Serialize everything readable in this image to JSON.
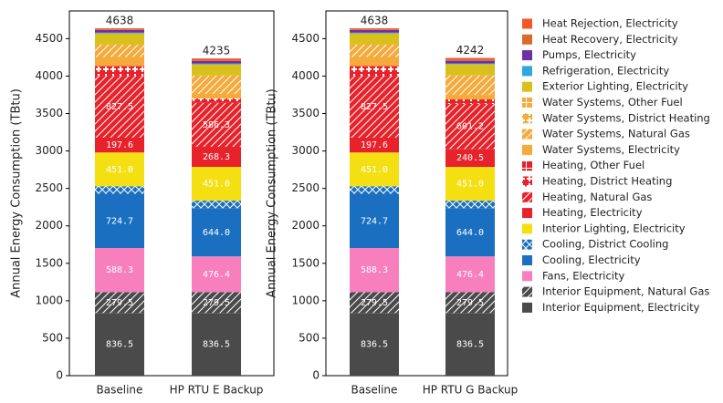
{
  "chart_data": [
    {
      "type": "bar",
      "stacked": true,
      "legend": "right",
      "ylabel": "Annual Energy Consumption (TBtu)",
      "categories": [
        "Baseline",
        "HP RTU E Backup"
      ],
      "totals": [
        4638,
        4235
      ],
      "ylim": [
        0,
        4869.9
      ],
      "yticks": [
        0,
        500,
        1000,
        1500,
        2000,
        2500,
        3000,
        3500,
        4000,
        4500
      ],
      "series": [
        {
          "name": "Interior Equipment, Electricity",
          "color": "#4a4a4a",
          "hatch": "none",
          "values": [
            836.5,
            836.5
          ],
          "value_labels": [
            "836.5",
            "836.5"
          ]
        },
        {
          "name": "Interior Equipment, Natural Gas",
          "color": "#4a4a4a",
          "hatch": "diag",
          "values": [
            279.5,
            279.5
          ],
          "value_labels": [
            "279.5",
            "279.5"
          ]
        },
        {
          "name": "Fans, Electricity",
          "color": "#f77fbe",
          "hatch": "none",
          "values": [
            588.3,
            476.4
          ],
          "value_labels": [
            "588.3",
            "476.4"
          ]
        },
        {
          "name": "Cooling, Electricity",
          "color": "#1a6fc0",
          "hatch": "none",
          "values": [
            724.7,
            644.0
          ],
          "value_labels": [
            "724.7",
            "644.0"
          ]
        },
        {
          "name": "Cooling, District Cooling",
          "color": "#1a6fc0",
          "hatch": "cross",
          "values": [
            100,
            100
          ]
        },
        {
          "name": "Interior Lighting, Electricity",
          "color": "#f4e012",
          "hatch": "none",
          "values": [
            451.0,
            451.0
          ],
          "value_labels": [
            "451.0",
            "451.0"
          ]
        },
        {
          "name": "Heating, Electricity",
          "color": "#e8222a",
          "hatch": "none",
          "values": [
            197.6,
            268.3
          ],
          "value_labels": [
            "197.6",
            "268.3"
          ]
        },
        {
          "name": "Heating, Natural Gas",
          "color": "#e8222a",
          "hatch": "diag",
          "values": [
            827.5,
            586.3
          ],
          "value_labels": [
            "827.5",
            "586.3"
          ]
        },
        {
          "name": "Heating, District Heating",
          "color": "#e8222a",
          "hatch": "plus",
          "values": [
            130,
            60
          ]
        },
        {
          "name": "Heating, Other Fuel",
          "color": "#e8222a",
          "hatch": "grid",
          "values": [
            0,
            0
          ]
        },
        {
          "name": "Water Systems, Electricity",
          "color": "#f5aa3c",
          "hatch": "none",
          "values": [
            120,
            60
          ]
        },
        {
          "name": "Water Systems, Natural Gas",
          "color": "#f5aa3c",
          "hatch": "diag",
          "values": [
            165,
            245
          ]
        },
        {
          "name": "Water Systems, District Heating",
          "color": "#f5aa3c",
          "hatch": "plus",
          "values": [
            0,
            0
          ]
        },
        {
          "name": "Water Systems, Other Fuel",
          "color": "#f5aa3c",
          "hatch": "grid",
          "values": [
            0,
            0
          ]
        },
        {
          "name": "Exterior Lighting, Electricity",
          "color": "#d9c11b",
          "hatch": "none",
          "values": [
            150,
            150
          ]
        },
        {
          "name": "Refrigeration, Electricity",
          "color": "#2ea9df",
          "hatch": "none",
          "values": [
            10,
            10
          ]
        },
        {
          "name": "Pumps, Electricity",
          "color": "#6d2fa5",
          "hatch": "none",
          "values": [
            35,
            35
          ]
        },
        {
          "name": "Heat Recovery, Electricity",
          "color": "#d96a2b",
          "hatch": "none",
          "values": [
            10,
            10
          ]
        },
        {
          "name": "Heat Rejection, Electricity",
          "color": "#f2572a",
          "hatch": "none",
          "values": [
            12.9,
            23.1
          ]
        }
      ]
    },
    {
      "type": "bar",
      "stacked": true,
      "ylabel": "Annual Energy Consumption (TBtu)",
      "categories": [
        "Baseline",
        "HP RTU G Backup"
      ],
      "totals": [
        4638,
        4242
      ],
      "ylim": [
        0,
        4869.9
      ],
      "yticks": [
        0,
        500,
        1000,
        1500,
        2000,
        2500,
        3000,
        3500,
        4000,
        4500
      ],
      "series": [
        {
          "color": "#4a4a4a",
          "hatch": "none",
          "values": [
            836.5,
            836.5
          ],
          "value_labels": [
            "836.5",
            "836.5"
          ]
        },
        {
          "color": "#4a4a4a",
          "hatch": "diag",
          "values": [
            279.5,
            279.5
          ],
          "value_labels": [
            "279.5",
            "279.5"
          ]
        },
        {
          "color": "#f77fbe",
          "hatch": "none",
          "values": [
            588.3,
            476.4
          ],
          "value_labels": [
            "588.3",
            "476.4"
          ]
        },
        {
          "color": "#1a6fc0",
          "hatch": "none",
          "values": [
            724.7,
            644.0
          ],
          "value_labels": [
            "724.7",
            "644.0"
          ]
        },
        {
          "color": "#1a6fc0",
          "hatch": "cross",
          "values": [
            100,
            100
          ]
        },
        {
          "color": "#f4e012",
          "hatch": "none",
          "values": [
            451.0,
            451.0
          ],
          "value_labels": [
            "451.0",
            "451.0"
          ]
        },
        {
          "color": "#e8222a",
          "hatch": "none",
          "values": [
            197.6,
            240.5
          ],
          "value_labels": [
            "197.6",
            "240.5"
          ]
        },
        {
          "color": "#e8222a",
          "hatch": "diag",
          "values": [
            827.5,
            601.2
          ],
          "value_labels": [
            "827.5",
            "601.2"
          ]
        },
        {
          "color": "#e8222a",
          "hatch": "plus",
          "values": [
            130,
            60
          ]
        },
        {
          "color": "#e8222a",
          "hatch": "grid",
          "values": [
            0,
            0
          ]
        },
        {
          "color": "#f5aa3c",
          "hatch": "none",
          "values": [
            120,
            60
          ]
        },
        {
          "color": "#f5aa3c",
          "hatch": "diag",
          "values": [
            165,
            260
          ]
        },
        {
          "color": "#f5aa3c",
          "hatch": "plus",
          "values": [
            0,
            0
          ]
        },
        {
          "color": "#f5aa3c",
          "hatch": "grid",
          "values": [
            0,
            0
          ]
        },
        {
          "color": "#d9c11b",
          "hatch": "none",
          "values": [
            150,
            150
          ]
        },
        {
          "color": "#2ea9df",
          "hatch": "none",
          "values": [
            10,
            10
          ]
        },
        {
          "color": "#6d2fa5",
          "hatch": "none",
          "values": [
            35,
            35
          ]
        },
        {
          "color": "#d96a2b",
          "hatch": "none",
          "values": [
            10,
            10
          ]
        },
        {
          "color": "#f2572a",
          "hatch": "none",
          "values": [
            12.9,
            27.9
          ]
        }
      ]
    }
  ]
}
